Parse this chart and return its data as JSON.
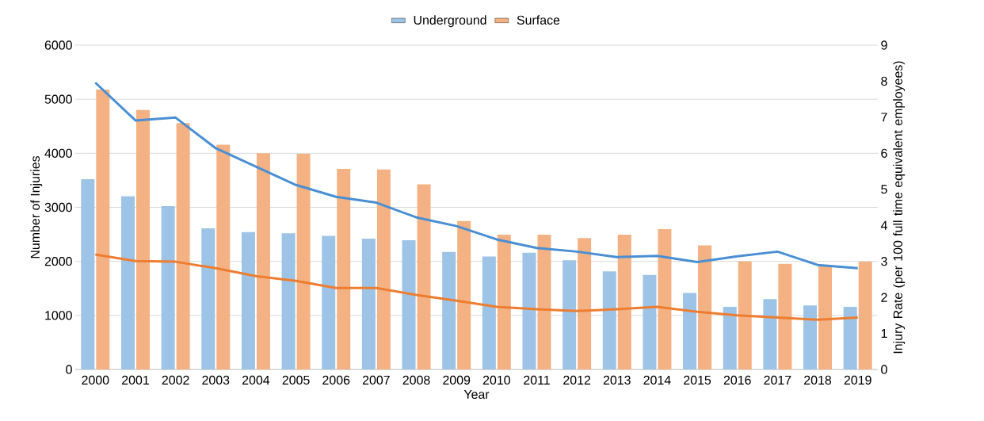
{
  "chart_data": {
    "type": "bar",
    "xlabel": "Year",
    "ylabel": "Number of Injuries",
    "y2label": "Injury Rate (per 100 full time equivalent employees)",
    "categories": [
      "2000",
      "2001",
      "2002",
      "2003",
      "2004",
      "2005",
      "2006",
      "2007",
      "2008",
      "2009",
      "2010",
      "2011",
      "2012",
      "2013",
      "2014",
      "2015",
      "2016",
      "2017",
      "2018",
      "2019"
    ],
    "series": [
      {
        "name": "Underground",
        "color": "#9dc3e6",
        "values": [
          3520,
          3205,
          3020,
          2610,
          2540,
          2520,
          2470,
          2420,
          2390,
          2175,
          2090,
          2160,
          2020,
          1815,
          1750,
          1415,
          1160,
          1300,
          1185,
          1160
        ]
      },
      {
        "name": "Surface",
        "color": "#f4b183",
        "values": [
          5180,
          4800,
          4560,
          4160,
          4000,
          3990,
          3710,
          3700,
          3425,
          2745,
          2495,
          2495,
          2430,
          2495,
          2595,
          2295,
          2000,
          1955,
          1915,
          1995
        ]
      },
      {
        "type": "line",
        "axis": "y2",
        "color": "#4a8fd4",
        "values": [
          7.96,
          6.91,
          6.99,
          6.14,
          5.63,
          5.12,
          4.79,
          4.63,
          4.22,
          3.98,
          3.61,
          3.37,
          3.27,
          3.12,
          3.15,
          2.98,
          3.14,
          3.27,
          2.9,
          2.81
        ]
      },
      {
        "type": "line",
        "axis": "y2",
        "color": "#ed7d31",
        "values": [
          3.19,
          3.01,
          2.99,
          2.81,
          2.59,
          2.46,
          2.26,
          2.26,
          2.07,
          1.91,
          1.74,
          1.67,
          1.62,
          1.67,
          1.74,
          1.6,
          1.5,
          1.44,
          1.38,
          1.44
        ]
      }
    ],
    "ylim": [
      0,
      6000
    ],
    "yticks": [
      0,
      1000,
      2000,
      3000,
      4000,
      5000,
      6000
    ],
    "y2lim": [
      0,
      9
    ],
    "y2ticks": [
      0,
      1,
      2,
      3,
      4,
      5,
      6,
      7,
      8,
      9
    ],
    "grid": "y",
    "legend": "top",
    "marker": "none",
    "line_style": "solid"
  }
}
